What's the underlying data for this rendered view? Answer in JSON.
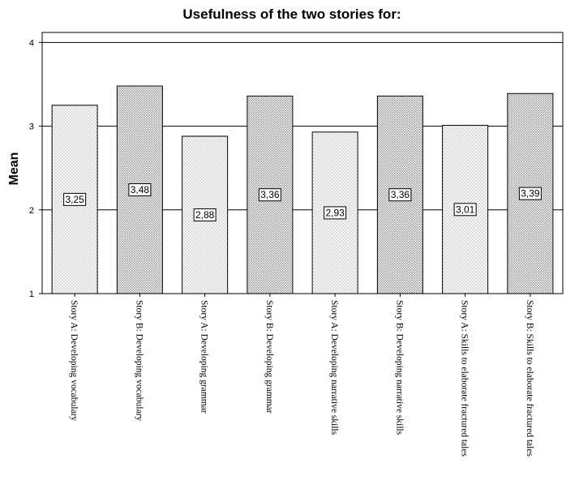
{
  "chart_data": {
    "type": "bar",
    "title": "Usefulness of the two stories for:",
    "xlabel": "",
    "ylabel": "Mean",
    "ylim": [
      1,
      4
    ],
    "yticks": [
      1,
      2,
      3,
      4
    ],
    "ytick_labels": [
      "1",
      "2",
      "3",
      "4"
    ],
    "grid": true,
    "categories": [
      "Story A: Developing vocabulary",
      "Story B: Developing vocabulary",
      "Story A: Developing grammar",
      "Story B: Developing grammar",
      "Story A: Developing narrative skills",
      "Story B: Developing narrative skills",
      "Story A: Skills to elaborate fractured tales",
      "Story B: Skills to elaborate fractured tales"
    ],
    "values": [
      3.25,
      3.48,
      2.88,
      3.36,
      2.93,
      3.36,
      3.01,
      3.39
    ],
    "data_labels": [
      "3,25",
      "3,48",
      "2,88",
      "3,36",
      "2,93",
      "3,36",
      "3,01",
      "3,39"
    ],
    "bar_patterns": [
      "light",
      "dark",
      "light",
      "dark",
      "light",
      "dark",
      "light",
      "dark"
    ],
    "colors": {
      "bar_fill_light": "#f4f4f4",
      "bar_fill_dark": "#e4e4e4",
      "dot": "#7a7a7a",
      "stroke": "#000000"
    }
  }
}
